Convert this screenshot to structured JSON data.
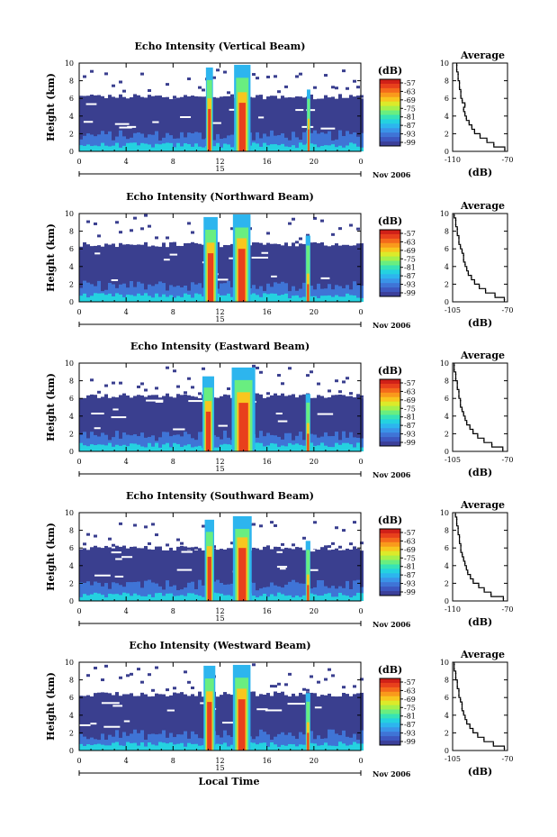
{
  "chart_data": [
    {
      "type": "heatmap",
      "title": "Echo Intensity (Vertical Beam)",
      "ylabel": "Height (km)",
      "xlabel": "",
      "x_ticks": [
        "0",
        "4",
        "8",
        "12",
        "16",
        "20",
        "0"
      ],
      "xlim": [
        0,
        24
      ],
      "y_ticks": [
        "0",
        "2",
        "4",
        "6",
        "8",
        "10"
      ],
      "ylim": [
        0,
        10
      ],
      "date_day": "15",
      "date_month": "Nov 2006",
      "colorbar": {
        "unit": "(dB)",
        "ticks": [
          "-57",
          "-63",
          "-69",
          "-75",
          "-81",
          "-87",
          "-93",
          "-99"
        ]
      },
      "cloud_top_km": 6.2,
      "convective_cells": [
        {
          "start_h": 10.8,
          "end_h": 11.4,
          "top_km": 9.5,
          "core_km": 4.8
        },
        {
          "start_h": 13.2,
          "end_h": 14.6,
          "top_km": 9.8,
          "core_km": 5.5
        },
        {
          "start_h": 19.4,
          "end_h": 19.7,
          "top_km": 7.0,
          "core_km": 2.5
        }
      ],
      "average_profile": {
        "title": "Average",
        "xlabel": "(dB)",
        "x_ticks": [
          "-110",
          "-70"
        ],
        "xlim": [
          -110,
          -70
        ],
        "y_ticks": [
          "0",
          "2",
          "4",
          "6",
          "8",
          "10"
        ],
        "heights_km": [
          0,
          0.5,
          1,
          1.5,
          2,
          2.5,
          3,
          3.5,
          4,
          4.5,
          5,
          5.5,
          6,
          6.5,
          7,
          7.5,
          8,
          8.5,
          9,
          9.5
        ],
        "values_db": [
          -72,
          -80,
          -85,
          -90,
          -94,
          -96,
          -98,
          -100,
          -101,
          -102,
          -101,
          -103,
          -104,
          -104,
          -105,
          -105,
          -106,
          -106,
          -107,
          -107
        ]
      }
    },
    {
      "type": "heatmap",
      "title": "Echo Intensity (Northward Beam)",
      "ylabel": "Height (km)",
      "xlabel": "",
      "x_ticks": [
        "0",
        "4",
        "8",
        "12",
        "16",
        "20",
        "0"
      ],
      "xlim": [
        0,
        24
      ],
      "y_ticks": [
        "0",
        "2",
        "4",
        "6",
        "8",
        "10"
      ],
      "ylim": [
        0,
        10
      ],
      "date_day": "15",
      "date_month": "Nov 2006",
      "colorbar": {
        "unit": "(dB)",
        "ticks": [
          "-57",
          "-63",
          "-69",
          "-75",
          "-81",
          "-87",
          "-93",
          "-99"
        ]
      },
      "cloud_top_km": 6.5,
      "convective_cells": [
        {
          "start_h": 10.6,
          "end_h": 11.8,
          "top_km": 9.6,
          "core_km": 5.5
        },
        {
          "start_h": 13.1,
          "end_h": 14.6,
          "top_km": 9.9,
          "core_km": 6.0
        },
        {
          "start_h": 19.3,
          "end_h": 19.7,
          "top_km": 7.5,
          "core_km": 2.0
        }
      ],
      "average_profile": {
        "title": "Average",
        "xlabel": "(dB)",
        "x_ticks": [
          "-105",
          "-70"
        ],
        "xlim": [
          -105,
          -70
        ],
        "y_ticks": [
          "0",
          "2",
          "4",
          "6",
          "8",
          "10"
        ],
        "heights_km": [
          0,
          0.5,
          1,
          1.5,
          2,
          2.5,
          3,
          3.5,
          4,
          4.5,
          5,
          5.5,
          6,
          6.5,
          7,
          7.5,
          8,
          8.5,
          9,
          9.5
        ],
        "values_db": [
          -72,
          -78,
          -84,
          -88,
          -91,
          -93,
          -95,
          -96,
          -97,
          -98,
          -98,
          -99,
          -100,
          -101,
          -101,
          -102,
          -102,
          -103,
          -103,
          -104
        ]
      }
    },
    {
      "type": "heatmap",
      "title": "Echo Intensity (Eastward Beam)",
      "ylabel": "Height (km)",
      "xlabel": "",
      "x_ticks": [
        "0",
        "4",
        "8",
        "12",
        "16",
        "20",
        "0"
      ],
      "xlim": [
        0,
        24
      ],
      "y_ticks": [
        "0",
        "2",
        "4",
        "6",
        "8",
        "10"
      ],
      "ylim": [
        0,
        10
      ],
      "date_day": "15",
      "date_month": "Nov 2006",
      "colorbar": {
        "unit": "(dB)",
        "ticks": [
          "-57",
          "-63",
          "-69",
          "-75",
          "-81",
          "-87",
          "-93",
          "-99"
        ]
      },
      "cloud_top_km": 6.3,
      "convective_cells": [
        {
          "start_h": 10.5,
          "end_h": 11.5,
          "top_km": 8.5,
          "core_km": 4.5
        },
        {
          "start_h": 13.0,
          "end_h": 15.0,
          "top_km": 9.5,
          "core_km": 5.5
        },
        {
          "start_h": 19.3,
          "end_h": 19.7,
          "top_km": 6.5,
          "core_km": 2.0
        }
      ],
      "average_profile": {
        "title": "Average",
        "xlabel": "(dB)",
        "x_ticks": [
          "-105",
          "-70"
        ],
        "xlim": [
          -105,
          -70
        ],
        "y_ticks": [
          "0",
          "2",
          "4",
          "6",
          "8",
          "10"
        ],
        "heights_km": [
          0,
          0.5,
          1,
          1.5,
          2,
          2.5,
          3,
          3.5,
          4,
          4.5,
          5,
          5.5,
          6,
          6.5,
          7,
          7.5,
          8,
          8.5,
          9,
          9.5
        ],
        "values_db": [
          -73,
          -80,
          -85,
          -89,
          -92,
          -94,
          -96,
          -97,
          -98,
          -99,
          -100,
          -100,
          -101,
          -101,
          -102,
          -102,
          -103,
          -103,
          -104,
          -104
        ]
      }
    },
    {
      "type": "heatmap",
      "title": "Echo Intensity (Southward Beam)",
      "ylabel": "Height (km)",
      "xlabel": "",
      "x_ticks": [
        "0",
        "4",
        "8",
        "12",
        "16",
        "20",
        "0"
      ],
      "xlim": [
        0,
        24
      ],
      "y_ticks": [
        "0",
        "2",
        "4",
        "6",
        "8",
        "10"
      ],
      "ylim": [
        0,
        10
      ],
      "date_day": "15",
      "date_month": "Nov 2006",
      "colorbar": {
        "unit": "(dB)",
        "ticks": [
          "-57",
          "-63",
          "-69",
          "-75",
          "-81",
          "-87",
          "-93",
          "-99"
        ]
      },
      "cloud_top_km": 6.0,
      "convective_cells": [
        {
          "start_h": 10.7,
          "end_h": 11.5,
          "top_km": 9.2,
          "core_km": 5.0
        },
        {
          "start_h": 13.1,
          "end_h": 14.7,
          "top_km": 9.6,
          "core_km": 6.0
        },
        {
          "start_h": 19.3,
          "end_h": 19.7,
          "top_km": 6.8,
          "core_km": 1.8
        }
      ],
      "average_profile": {
        "title": "Average",
        "xlabel": "(dB)",
        "x_ticks": [
          "-110",
          "-70"
        ],
        "xlim": [
          -110,
          -70
        ],
        "y_ticks": [
          "0",
          "2",
          "4",
          "6",
          "8",
          "10"
        ],
        "heights_km": [
          0,
          0.5,
          1,
          1.5,
          2,
          2.5,
          3,
          3.5,
          4,
          4.5,
          5,
          5.5,
          6,
          6.5,
          7,
          7.5,
          8,
          8.5,
          9,
          9.5
        ],
        "values_db": [
          -73,
          -82,
          -87,
          -91,
          -95,
          -97,
          -99,
          -100,
          -101,
          -102,
          -103,
          -104,
          -104,
          -105,
          -105,
          -106,
          -106,
          -107,
          -107,
          -108
        ]
      }
    },
    {
      "type": "heatmap",
      "title": "Echo Intensity (Westward Beam)",
      "ylabel": "Height (km)",
      "xlabel": "Local Time",
      "x_ticks": [
        "0",
        "4",
        "8",
        "12",
        "16",
        "20",
        "0"
      ],
      "xlim": [
        0,
        24
      ],
      "y_ticks": [
        "0",
        "2",
        "4",
        "6",
        "8",
        "10"
      ],
      "ylim": [
        0,
        10
      ],
      "date_day": "15",
      "date_month": "Nov 2006",
      "colorbar": {
        "unit": "(dB)",
        "ticks": [
          "-57",
          "-63",
          "-69",
          "-75",
          "-81",
          "-87",
          "-93",
          "-99"
        ]
      },
      "cloud_top_km": 6.4,
      "convective_cells": [
        {
          "start_h": 10.6,
          "end_h": 11.6,
          "top_km": 9.6,
          "core_km": 5.5
        },
        {
          "start_h": 13.1,
          "end_h": 14.6,
          "top_km": 9.7,
          "core_km": 5.8
        },
        {
          "start_h": 19.3,
          "end_h": 19.7,
          "top_km": 6.5,
          "core_km": 2.0
        }
      ],
      "average_profile": {
        "title": "Average",
        "xlabel": "(dB)",
        "x_ticks": [
          "-105",
          "-70"
        ],
        "xlim": [
          -105,
          -70
        ],
        "y_ticks": [
          "0",
          "2",
          "4",
          "6",
          "8",
          "10"
        ],
        "heights_km": [
          0,
          0.5,
          1,
          1.5,
          2,
          2.5,
          3,
          3.5,
          4,
          4.5,
          5,
          5.5,
          6,
          6.5,
          7,
          7.5,
          8,
          8.5,
          9,
          9.5
        ],
        "values_db": [
          -72,
          -79,
          -85,
          -89,
          -92,
          -94,
          -96,
          -97,
          -98,
          -99,
          -99,
          -100,
          -101,
          -101,
          -102,
          -102,
          -103,
          -103,
          -104,
          -104
        ]
      }
    }
  ]
}
